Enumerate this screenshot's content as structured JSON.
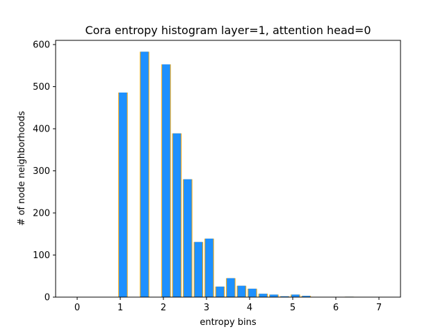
{
  "chart_data": {
    "type": "bar",
    "title": "Cora entropy histogram layer=1, attention head=0",
    "xlabel": "entropy bins",
    "ylabel": "# of node neighborhoods",
    "xlim": [
      -0.5,
      7.5
    ],
    "ylim": [
      0,
      610
    ],
    "xticks": [
      0,
      1,
      2,
      3,
      4,
      5,
      6,
      7
    ],
    "yticks": [
      0,
      100,
      200,
      300,
      400,
      500,
      600
    ],
    "grid": false,
    "bar_fill_color": "#1e90ff",
    "bar_edge_color": "#ffa500",
    "bin_width": 0.25,
    "bins": [
      {
        "x": 0.97,
        "value": 486
      },
      {
        "x": 1.47,
        "value": 583
      },
      {
        "x": 1.97,
        "value": 553
      },
      {
        "x": 2.22,
        "value": 389
      },
      {
        "x": 2.47,
        "value": 280
      },
      {
        "x": 2.72,
        "value": 131
      },
      {
        "x": 2.97,
        "value": 139
      },
      {
        "x": 3.22,
        "value": 25
      },
      {
        "x": 3.47,
        "value": 45
      },
      {
        "x": 3.72,
        "value": 27
      },
      {
        "x": 3.97,
        "value": 20
      },
      {
        "x": 4.22,
        "value": 8
      },
      {
        "x": 4.47,
        "value": 6
      },
      {
        "x": 4.72,
        "value": 2
      },
      {
        "x": 4.97,
        "value": 6
      },
      {
        "x": 5.22,
        "value": 3
      },
      {
        "x": 6.22,
        "value": 1
      }
    ]
  }
}
